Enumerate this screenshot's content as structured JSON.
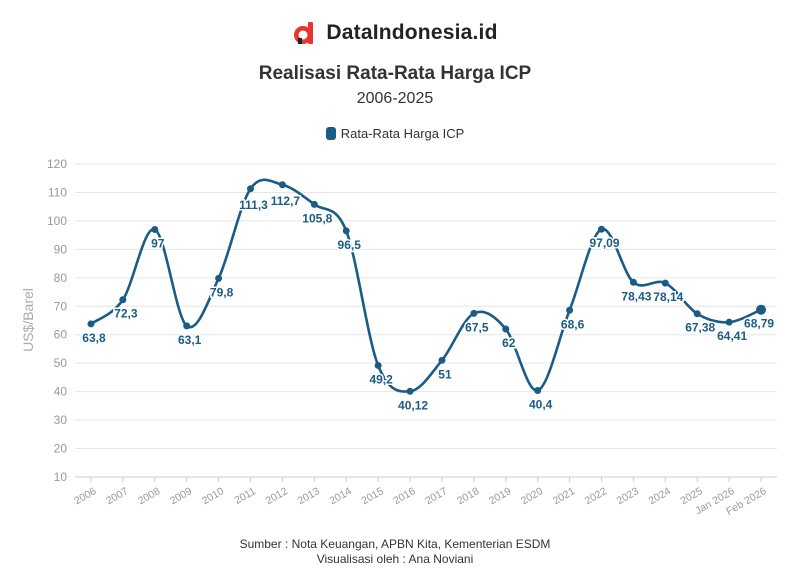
{
  "brand": {
    "name": "DataIndonesia.id",
    "logo": "dataindonesia-logo-icon"
  },
  "colors": {
    "series": "#1a5c85",
    "logo_red": "#e8342c",
    "grid": "#e6e6e6",
    "axis_text": "#999999"
  },
  "chart_data": {
    "type": "line",
    "title": "Realisasi Rata-Rata Harga ICP",
    "subtitle": "2006-2025",
    "ylabel": "US$/Barel",
    "xlabel": "",
    "ylim": [
      10,
      120
    ],
    "yticks": [
      10,
      20,
      30,
      40,
      50,
      60,
      70,
      80,
      90,
      100,
      110,
      120
    ],
    "categories": [
      "2006",
      "2007",
      "2008",
      "2009",
      "2010",
      "2011",
      "2012",
      "2013",
      "2014",
      "2015",
      "2016",
      "2017",
      "2018",
      "2019",
      "2020",
      "2021",
      "2022",
      "2023",
      "2024",
      "2025",
      "Jan 2026",
      "Feb 2026"
    ],
    "series": [
      {
        "name": "Rata-Rata Harga ICP",
        "values": [
          63.8,
          72.3,
          97,
          63.1,
          79.8,
          111.3,
          112.7,
          105.8,
          96.5,
          49.2,
          40.12,
          51,
          67.5,
          62,
          40.4,
          68.6,
          97.09,
          78.43,
          78.14,
          67.38,
          64.41,
          68.79
        ],
        "labels": [
          "63,8",
          "72,3",
          "97",
          "63,1",
          "79,8",
          "111,3",
          "112,7",
          "105,8",
          "96,5",
          "49,2",
          "40,12",
          "51",
          "67,5",
          "62",
          "40,4",
          "68,6",
          "97,09",
          "78,43",
          "78,14",
          "67,38",
          "64,41",
          "68,79"
        ]
      }
    ],
    "grid": true,
    "legend": "top-center"
  },
  "footer": {
    "source": "Sumber : Nota Keuangan, APBN Kita, Kementerian ESDM",
    "visual": "Visualisasi oleh : Ana Noviani"
  }
}
